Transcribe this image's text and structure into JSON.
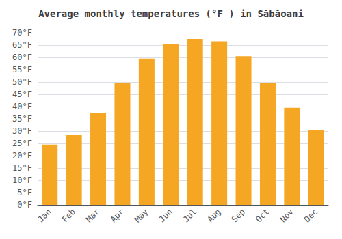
{
  "chart_data": {
    "type": "bar",
    "title": "Average monthly temperatures (°F ) in Săbăoani",
    "categories": [
      "Jan",
      "Feb",
      "Mar",
      "Apr",
      "May",
      "Jun",
      "Jul",
      "Aug",
      "Sep",
      "Oct",
      "Nov",
      "Dec"
    ],
    "values": [
      24.5,
      28.5,
      37.5,
      49.5,
      59.5,
      65.5,
      67.5,
      66.5,
      60.5,
      49.5,
      39.5,
      30.5
    ],
    "color": "#F5A623",
    "ylim": [
      0,
      70
    ],
    "yticks": [
      {
        "value": 0,
        "label": "0°F"
      },
      {
        "value": 5,
        "label": "5°F"
      },
      {
        "value": 10,
        "label": "10°F"
      },
      {
        "value": 15,
        "label": "15°F"
      },
      {
        "value": 20,
        "label": "20°F"
      },
      {
        "value": 25,
        "label": "25°F"
      },
      {
        "value": 30,
        "label": "30°F"
      },
      {
        "value": 35,
        "label": "35°F"
      },
      {
        "value": 40,
        "label": "40°F"
      },
      {
        "value": 45,
        "label": "45°F"
      },
      {
        "value": 50,
        "label": "50°F"
      },
      {
        "value": 55,
        "label": "55°F"
      },
      {
        "value": 60,
        "label": "60°F"
      },
      {
        "value": 65,
        "label": "65°F"
      },
      {
        "value": 70,
        "label": "70°F"
      }
    ],
    "grid": true
  }
}
